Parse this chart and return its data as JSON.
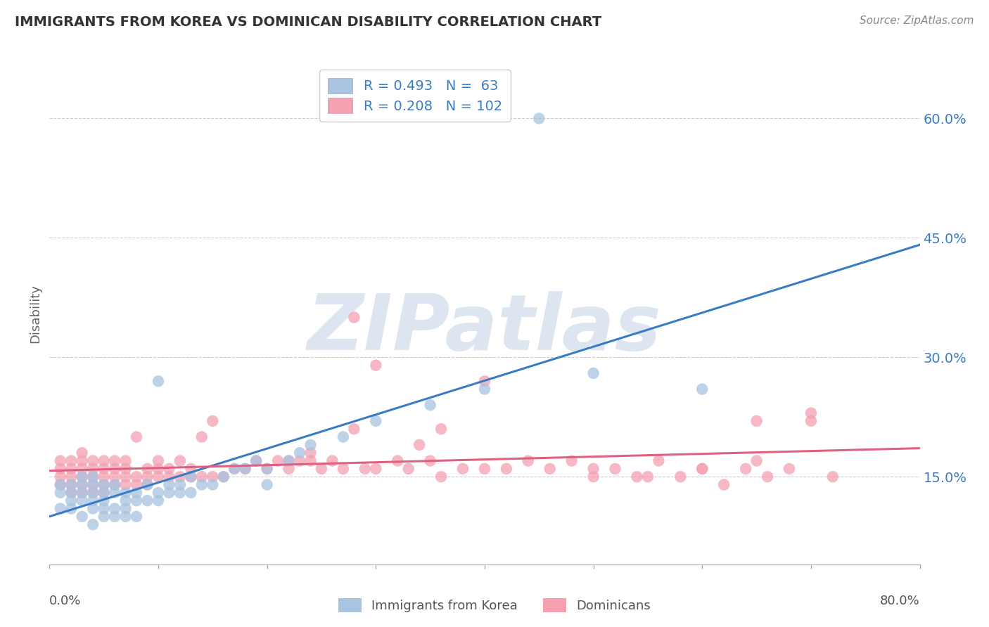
{
  "title": "IMMIGRANTS FROM KOREA VS DOMINICAN DISABILITY CORRELATION CHART",
  "source": "Source: ZipAtlas.com",
  "ylabel": "Disability",
  "y_ticks": [
    0.15,
    0.3,
    0.45,
    0.6
  ],
  "y_tick_labels": [
    "15.0%",
    "30.0%",
    "45.0%",
    "60.0%"
  ],
  "x_lim": [
    0.0,
    0.8
  ],
  "y_lim": [
    0.04,
    0.67
  ],
  "korea_R": 0.493,
  "korea_N": 63,
  "dominican_R": 0.208,
  "dominican_N": 102,
  "korea_color": "#a8c4e0",
  "dominican_color": "#f4a0b0",
  "korea_line_color": "#3a7cc4",
  "dominican_line_color": "#e06080",
  "legend_text_color": "#3a7cc4",
  "title_color": "#333333",
  "background_color": "#ffffff",
  "grid_color": "#cccccc",
  "watermark_text": "ZIPatlas",
  "watermark_color": "#dde6f0",
  "korea_scatter_x": [
    0.01,
    0.01,
    0.01,
    0.02,
    0.02,
    0.02,
    0.02,
    0.03,
    0.03,
    0.03,
    0.03,
    0.03,
    0.04,
    0.04,
    0.04,
    0.04,
    0.04,
    0.04,
    0.05,
    0.05,
    0.05,
    0.05,
    0.05,
    0.06,
    0.06,
    0.06,
    0.06,
    0.07,
    0.07,
    0.07,
    0.07,
    0.08,
    0.08,
    0.08,
    0.09,
    0.09,
    0.1,
    0.1,
    0.1,
    0.11,
    0.11,
    0.12,
    0.12,
    0.13,
    0.13,
    0.14,
    0.15,
    0.16,
    0.17,
    0.18,
    0.19,
    0.2,
    0.2,
    0.22,
    0.23,
    0.24,
    0.27,
    0.3,
    0.35,
    0.4,
    0.45,
    0.5,
    0.6
  ],
  "korea_scatter_y": [
    0.11,
    0.13,
    0.14,
    0.11,
    0.12,
    0.13,
    0.14,
    0.1,
    0.12,
    0.13,
    0.14,
    0.15,
    0.09,
    0.11,
    0.12,
    0.13,
    0.14,
    0.15,
    0.1,
    0.11,
    0.12,
    0.13,
    0.14,
    0.1,
    0.11,
    0.13,
    0.14,
    0.1,
    0.11,
    0.12,
    0.13,
    0.1,
    0.12,
    0.13,
    0.12,
    0.14,
    0.12,
    0.13,
    0.27,
    0.13,
    0.14,
    0.13,
    0.14,
    0.13,
    0.15,
    0.14,
    0.14,
    0.15,
    0.16,
    0.16,
    0.17,
    0.14,
    0.16,
    0.17,
    0.18,
    0.19,
    0.2,
    0.22,
    0.24,
    0.26,
    0.6,
    0.28,
    0.26
  ],
  "dominican_scatter_x": [
    0.01,
    0.01,
    0.01,
    0.01,
    0.02,
    0.02,
    0.02,
    0.02,
    0.02,
    0.03,
    0.03,
    0.03,
    0.03,
    0.03,
    0.03,
    0.04,
    0.04,
    0.04,
    0.04,
    0.04,
    0.05,
    0.05,
    0.05,
    0.05,
    0.05,
    0.06,
    0.06,
    0.06,
    0.06,
    0.07,
    0.07,
    0.07,
    0.07,
    0.08,
    0.08,
    0.08,
    0.09,
    0.09,
    0.09,
    0.1,
    0.1,
    0.1,
    0.11,
    0.11,
    0.12,
    0.12,
    0.13,
    0.13,
    0.14,
    0.14,
    0.15,
    0.15,
    0.16,
    0.17,
    0.18,
    0.19,
    0.2,
    0.21,
    0.22,
    0.23,
    0.24,
    0.25,
    0.26,
    0.27,
    0.28,
    0.29,
    0.3,
    0.32,
    0.33,
    0.35,
    0.36,
    0.38,
    0.4,
    0.42,
    0.44,
    0.46,
    0.48,
    0.5,
    0.52,
    0.54,
    0.56,
    0.58,
    0.6,
    0.62,
    0.64,
    0.65,
    0.66,
    0.68,
    0.7,
    0.72,
    0.28,
    0.3,
    0.34,
    0.36,
    0.4,
    0.5,
    0.55,
    0.6,
    0.65,
    0.7,
    0.22,
    0.24
  ],
  "dominican_scatter_y": [
    0.14,
    0.15,
    0.16,
    0.17,
    0.13,
    0.14,
    0.15,
    0.16,
    0.17,
    0.13,
    0.14,
    0.15,
    0.16,
    0.17,
    0.18,
    0.13,
    0.14,
    0.15,
    0.16,
    0.17,
    0.13,
    0.14,
    0.15,
    0.16,
    0.17,
    0.14,
    0.15,
    0.16,
    0.17,
    0.14,
    0.15,
    0.16,
    0.17,
    0.14,
    0.15,
    0.2,
    0.14,
    0.15,
    0.16,
    0.15,
    0.16,
    0.17,
    0.15,
    0.16,
    0.15,
    0.17,
    0.15,
    0.16,
    0.15,
    0.2,
    0.15,
    0.22,
    0.15,
    0.16,
    0.16,
    0.17,
    0.16,
    0.17,
    0.16,
    0.17,
    0.17,
    0.16,
    0.17,
    0.16,
    0.21,
    0.16,
    0.16,
    0.17,
    0.16,
    0.17,
    0.15,
    0.16,
    0.27,
    0.16,
    0.17,
    0.16,
    0.17,
    0.15,
    0.16,
    0.15,
    0.17,
    0.15,
    0.16,
    0.14,
    0.16,
    0.17,
    0.15,
    0.16,
    0.23,
    0.15,
    0.35,
    0.29,
    0.19,
    0.21,
    0.16,
    0.16,
    0.15,
    0.16,
    0.22,
    0.22,
    0.17,
    0.18
  ]
}
